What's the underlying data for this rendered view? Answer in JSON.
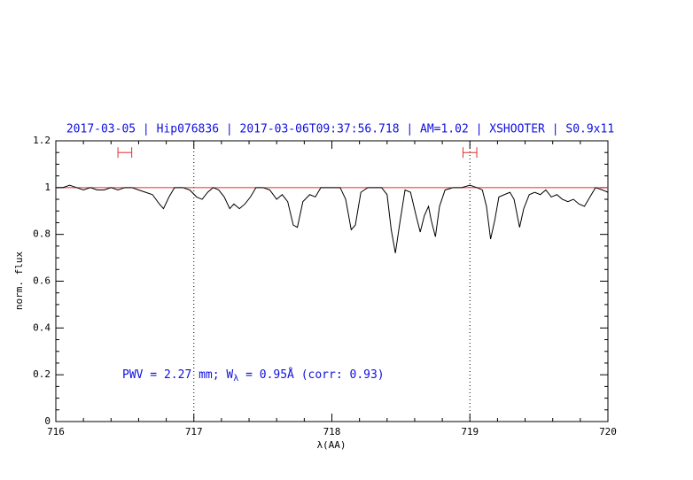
{
  "chart_data": {
    "type": "line",
    "title": "2017-03-05 | Hip076836 | 2017-03-06T09:37:56.718 | AM=1.02 | XSHOOTER | S0.9x11",
    "x_label": "λ(AA)",
    "y_label": "norm. flux",
    "annotation": [
      "PWV = 2.27 mm; W",
      "λ",
      " = 0.95Å (corr: 0.93)"
    ],
    "xlim": [
      716,
      720
    ],
    "ylim": [
      0,
      1.2
    ],
    "xticks": [
      716,
      717,
      718,
      719,
      720
    ],
    "yticks": [
      0,
      0.2,
      0.4,
      0.6,
      0.8,
      1,
      1.2
    ],
    "reference_line": {
      "y": 1,
      "color": "#e03030"
    },
    "vlines": [
      717,
      719
    ],
    "range_markers": {
      "color": "#e03030",
      "items": [
        {
          "x": [
            716.45,
            716.55
          ],
          "y": 1.15
        },
        {
          "x": [
            718.95,
            719.05
          ],
          "y": 1.15
        }
      ]
    },
    "series": [
      {
        "color": "#000000",
        "x": [
          716.0,
          716.05,
          716.1,
          716.15,
          716.2,
          716.25,
          716.3,
          716.35,
          716.4,
          716.45,
          716.5,
          716.55,
          716.6,
          716.65,
          716.7,
          716.75,
          716.78,
          716.82,
          716.86,
          716.92,
          716.97,
          717.02,
          717.06,
          717.1,
          717.14,
          717.18,
          717.22,
          717.26,
          717.29,
          717.33,
          717.37,
          717.41,
          717.45,
          717.5,
          717.55,
          717.6,
          717.64,
          717.68,
          717.72,
          717.75,
          717.79,
          717.84,
          717.88,
          717.92,
          718.0,
          718.06,
          718.1,
          718.14,
          718.17,
          718.21,
          718.26,
          718.32,
          718.36,
          718.4,
          718.43,
          718.46,
          718.49,
          718.53,
          718.57,
          718.61,
          718.64,
          718.67,
          718.7,
          718.72,
          718.75,
          718.78,
          718.82,
          718.88,
          718.94,
          719.0,
          719.05,
          719.09,
          719.12,
          719.15,
          719.18,
          719.21,
          719.25,
          719.29,
          719.32,
          719.36,
          719.39,
          719.43,
          719.47,
          719.51,
          719.55,
          719.59,
          719.63,
          719.67,
          719.71,
          719.75,
          719.79,
          719.83,
          719.87,
          719.91,
          719.96,
          720.0
        ],
        "values": [
          1.0,
          1.0,
          1.01,
          1.0,
          0.99,
          1.0,
          0.99,
          0.99,
          1.0,
          0.99,
          1.0,
          1.0,
          0.99,
          0.98,
          0.97,
          0.93,
          0.91,
          0.96,
          1.0,
          1.0,
          0.99,
          0.96,
          0.95,
          0.98,
          1.0,
          0.99,
          0.96,
          0.91,
          0.93,
          0.91,
          0.93,
          0.96,
          1.0,
          1.0,
          0.99,
          0.95,
          0.97,
          0.94,
          0.84,
          0.83,
          0.94,
          0.97,
          0.96,
          1.0,
          1.0,
          1.0,
          0.95,
          0.82,
          0.84,
          0.98,
          1.0,
          1.0,
          1.0,
          0.97,
          0.82,
          0.72,
          0.84,
          0.99,
          0.98,
          0.88,
          0.81,
          0.88,
          0.92,
          0.86,
          0.79,
          0.92,
          0.99,
          1.0,
          1.0,
          1.01,
          1.0,
          0.99,
          0.92,
          0.78,
          0.86,
          0.96,
          0.97,
          0.98,
          0.95,
          0.83,
          0.91,
          0.97,
          0.98,
          0.97,
          0.99,
          0.96,
          0.97,
          0.95,
          0.94,
          0.95,
          0.93,
          0.92,
          0.96,
          1.0,
          0.99,
          0.98
        ]
      }
    ]
  }
}
